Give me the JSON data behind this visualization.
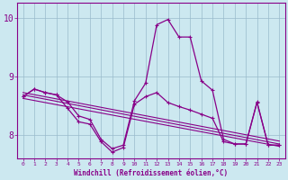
{
  "background_color": "#cce8f0",
  "line_color": "#880088",
  "xlabel": "Windchill (Refroidissement éolien,°C)",
  "ylim": [
    7.6,
    10.25
  ],
  "yticks": [
    8,
    9,
    10
  ],
  "xlim": [
    -0.5,
    23.5
  ],
  "x_ticks": [
    0,
    1,
    2,
    3,
    4,
    5,
    6,
    7,
    8,
    9,
    10,
    11,
    12,
    13,
    14,
    15,
    16,
    17,
    18,
    19,
    20,
    21,
    22,
    23
  ],
  "series1": [
    8.65,
    8.78,
    8.72,
    8.68,
    8.56,
    8.32,
    8.26,
    7.92,
    7.76,
    7.82,
    8.58,
    8.88,
    9.88,
    9.97,
    9.67,
    9.67,
    8.92,
    8.76,
    7.92,
    7.84,
    7.84,
    8.56,
    7.82,
    7.82
  ],
  "series2": [
    8.65,
    8.78,
    8.72,
    8.68,
    8.45,
    8.22,
    8.18,
    7.88,
    7.7,
    7.78,
    8.52,
    8.65,
    8.72,
    8.55,
    8.48,
    8.42,
    8.35,
    8.28,
    7.88,
    7.84,
    7.84,
    8.55,
    7.82,
    7.82
  ],
  "trend1_x": [
    0,
    23
  ],
  "trend1_y": [
    8.68,
    7.84
  ],
  "trend2_x": [
    0,
    23
  ],
  "trend2_y": [
    8.72,
    7.89
  ],
  "trend3_x": [
    0,
    23
  ],
  "trend3_y": [
    8.62,
    7.8
  ]
}
